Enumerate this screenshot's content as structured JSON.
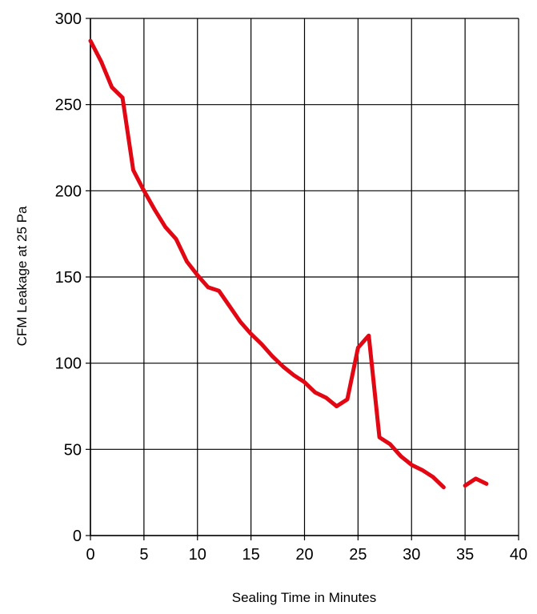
{
  "chart_data": {
    "type": "line",
    "title": "",
    "xlabel": "Sealing Time in Minutes",
    "ylabel": "CFM Leakage at 25 Pa",
    "xlim": [
      0,
      40
    ],
    "ylim": [
      0,
      300
    ],
    "x_ticks": [
      "0",
      "5",
      "10",
      "15",
      "20",
      "25",
      "30",
      "35",
      "40"
    ],
    "y_ticks": [
      "0",
      "50",
      "100",
      "150",
      "200",
      "250",
      "300"
    ],
    "grid": true,
    "legend": "none",
    "series": [
      {
        "color": "#e30613",
        "segments": [
          [
            [
              0,
              287
            ],
            [
              1,
              275
            ],
            [
              2,
              260
            ],
            [
              3,
              254
            ],
            [
              4,
              212
            ],
            [
              5,
              200
            ],
            [
              6,
              189
            ],
            [
              7,
              179
            ],
            [
              8,
              172
            ],
            [
              9,
              159
            ],
            [
              10,
              151
            ],
            [
              11,
              144
            ],
            [
              12,
              142
            ],
            [
              13,
              133
            ],
            [
              14,
              124
            ],
            [
              15,
              117
            ],
            [
              16,
              111
            ],
            [
              17,
              104
            ],
            [
              18,
              98
            ],
            [
              19,
              93
            ],
            [
              20,
              89
            ],
            [
              21,
              83
            ],
            [
              22,
              80
            ],
            [
              23,
              75
            ],
            [
              24,
              79
            ],
            [
              25,
              109
            ],
            [
              26,
              116
            ],
            [
              27,
              57
            ],
            [
              28,
              53
            ],
            [
              29,
              46
            ],
            [
              30,
              41
            ],
            [
              31,
              38
            ],
            [
              32,
              34
            ],
            [
              33,
              28
            ]
          ],
          [
            [
              35,
              29
            ],
            [
              36,
              33
            ],
            [
              37,
              30
            ]
          ]
        ]
      }
    ]
  }
}
